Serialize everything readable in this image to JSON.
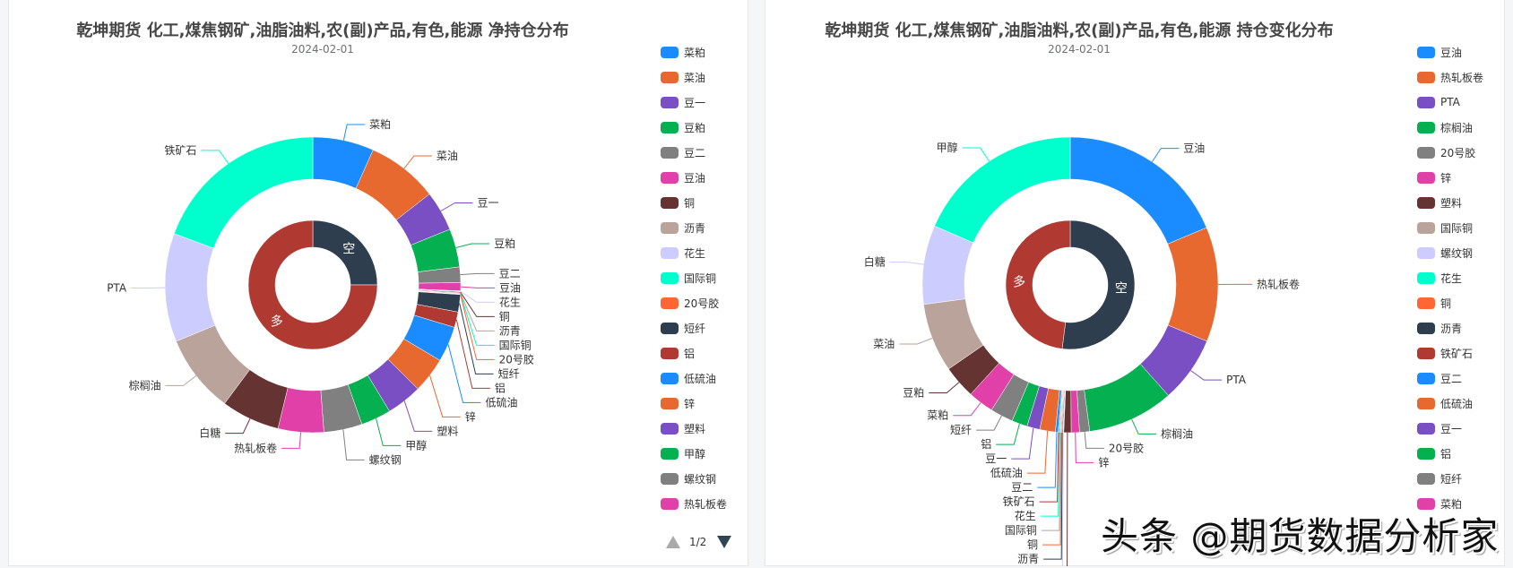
{
  "left": {
    "title": "乾坤期货 化工,煤焦钢矿,油脂油料,农(副)产品,有色,能源 净持仓分布",
    "subtitle": "2024-02-01",
    "legend": [
      {
        "name": "菜粕",
        "color": "#1a8cff"
      },
      {
        "name": "菜油",
        "color": "#e8692f"
      },
      {
        "name": "豆一",
        "color": "#7b4fc4"
      },
      {
        "name": "豆粕",
        "color": "#04b050"
      },
      {
        "name": "豆二",
        "color": "#808080"
      },
      {
        "name": "豆油",
        "color": "#e040a8"
      },
      {
        "name": "铜",
        "color": "#663333"
      },
      {
        "name": "沥青",
        "color": "#baa39b"
      },
      {
        "name": "花生",
        "color": "#ccccff"
      },
      {
        "name": "国际铜",
        "color": "#00ffcc"
      },
      {
        "name": "20号胶",
        "color": "#ff6633"
      },
      {
        "name": "短纤",
        "color": "#2f3e4e"
      },
      {
        "name": "铝",
        "color": "#b03a32"
      },
      {
        "name": "低硫油",
        "color": "#1a8cff"
      },
      {
        "name": "锌",
        "color": "#e8692f"
      },
      {
        "name": "塑料",
        "color": "#7b4fc4"
      },
      {
        "name": "甲醇",
        "color": "#04b050"
      },
      {
        "name": "螺纹钢",
        "color": "#808080"
      },
      {
        "name": "热轧板卷",
        "color": "#e040a8"
      },
      {
        "name": "白糖",
        "color": "#663333"
      }
    ],
    "pager": "1/2"
  },
  "right": {
    "title": "乾坤期货 化工,煤焦钢矿,油脂油料,农(副)产品,有色,能源 持仓变化分布",
    "subtitle": "2024-02-01",
    "legend": [
      {
        "name": "豆油",
        "color": "#1a8cff"
      },
      {
        "name": "热轧板卷",
        "color": "#e8692f"
      },
      {
        "name": "PTA",
        "color": "#7b4fc4"
      },
      {
        "name": "棕榈油",
        "color": "#04b050"
      },
      {
        "name": "20号胶",
        "color": "#808080"
      },
      {
        "name": "锌",
        "color": "#e040a8"
      },
      {
        "name": "塑料",
        "color": "#663333"
      },
      {
        "name": "国际铜",
        "color": "#baa39b"
      },
      {
        "name": "螺纹钢",
        "color": "#ccccff"
      },
      {
        "name": "花生",
        "color": "#00ffcc"
      },
      {
        "name": "铜",
        "color": "#ff6633"
      },
      {
        "name": "沥青",
        "color": "#2f3e4e"
      },
      {
        "name": "铁矿石",
        "color": "#b03a32"
      },
      {
        "name": "豆二",
        "color": "#1a8cff"
      },
      {
        "name": "低硫油",
        "color": "#e8692f"
      },
      {
        "name": "豆一",
        "color": "#7b4fc4"
      },
      {
        "name": "铝",
        "color": "#04b050"
      },
      {
        "name": "短纤",
        "color": "#808080"
      },
      {
        "name": "菜粕",
        "color": "#e040a8"
      }
    ]
  },
  "watermark": "头条 @期货数据分析家",
  "chart_data": [
    {
      "type": "pie",
      "title": "乾坤期货 化工,煤焦钢矿,油脂油料,农(副)产品,有色,能源 净持仓分布",
      "subtitle": "2024-02-01",
      "legend_position": "right",
      "center": [
        348,
        318
      ],
      "inner_ring": {
        "r0": 42,
        "r1": 72,
        "slices": [
          {
            "name": "空",
            "value": 25,
            "color": "#2f3e4e"
          },
          {
            "name": "多",
            "value": 75,
            "color": "#b03a32"
          }
        ]
      },
      "outer_ring": {
        "r0": 118,
        "r1": 165,
        "slices": [
          {
            "name": "菜粕",
            "value": 6.7,
            "color": "#1a8cff"
          },
          {
            "name": "菜油",
            "value": 7.8,
            "color": "#e8692f"
          },
          {
            "name": "豆一",
            "value": 4.4,
            "color": "#7b4fc4"
          },
          {
            "name": "豆粕",
            "value": 4.2,
            "color": "#04b050"
          },
          {
            "name": "豆二",
            "value": 1.7,
            "color": "#808080"
          },
          {
            "name": "豆油",
            "value": 0.9,
            "color": "#e040a8"
          },
          {
            "name": "花生",
            "value": 0.1,
            "color": "#ccccff"
          },
          {
            "name": "铜",
            "value": 0.1,
            "color": "#663333"
          },
          {
            "name": "沥青",
            "value": 0.1,
            "color": "#baa39b"
          },
          {
            "name": "国际铜",
            "value": 0.05,
            "color": "#00ffcc"
          },
          {
            "name": "20号胶",
            "value": 0.05,
            "color": "#ff6633"
          },
          {
            "name": "短纤",
            "value": 1.9,
            "color": "#2f3e4e"
          },
          {
            "name": "铝",
            "value": 1.7,
            "color": "#b03a32"
          },
          {
            "name": "低硫油",
            "value": 3.9,
            "color": "#1a8cff"
          },
          {
            "name": "锌",
            "value": 3.9,
            "color": "#e8692f"
          },
          {
            "name": "塑料",
            "value": 3.9,
            "color": "#7b4fc4"
          },
          {
            "name": "甲醇",
            "value": 3.3,
            "color": "#04b050"
          },
          {
            "name": "螺纹钢",
            "value": 4.2,
            "color": "#808080"
          },
          {
            "name": "热轧板卷",
            "value": 5.0,
            "color": "#e040a8"
          },
          {
            "name": "白糖",
            "value": 6.4,
            "color": "#663333"
          },
          {
            "name": "棕榈油",
            "value": 8.6,
            "color": "#baa39b"
          },
          {
            "name": "PTA",
            "value": 11.9,
            "color": "#ccccff"
          },
          {
            "name": "铁矿石",
            "value": 19.4,
            "color": "#00ffcc"
          }
        ]
      }
    },
    {
      "type": "pie",
      "title": "乾坤期货 化工,煤焦钢矿,油脂油料,农(副)产品,有色,能源 持仓变化分布",
      "subtitle": "2024-02-01",
      "legend_position": "right",
      "center": [
        1193,
        318
      ],
      "inner_ring": {
        "r0": 42,
        "r1": 72,
        "slices": [
          {
            "name": "空",
            "value": 52,
            "color": "#2f3e4e"
          },
          {
            "name": "多",
            "value": 48,
            "color": "#b03a32"
          }
        ]
      },
      "outer_ring": {
        "r0": 118,
        "r1": 165,
        "slices": [
          {
            "name": "豆油",
            "value": 18.6,
            "color": "#1a8cff"
          },
          {
            "name": "热轧板卷",
            "value": 12.5,
            "color": "#e8692f"
          },
          {
            "name": "PTA",
            "value": 7.2,
            "color": "#7b4fc4"
          },
          {
            "name": "棕榈油",
            "value": 9.4,
            "color": "#04b050"
          },
          {
            "name": "20号胶",
            "value": 1.1,
            "color": "#808080"
          },
          {
            "name": "锌",
            "value": 0.9,
            "color": "#e040a8"
          },
          {
            "name": "塑料",
            "value": 0.8,
            "color": "#663333"
          },
          {
            "name": "螺纹钢",
            "value": 0.1,
            "color": "#ccccff"
          },
          {
            "name": "沥青",
            "value": 0.1,
            "color": "#2f3e4e"
          },
          {
            "name": "铜",
            "value": 0.1,
            "color": "#ff6633"
          },
          {
            "name": "国际铜",
            "value": 0.1,
            "color": "#baa39b"
          },
          {
            "name": "花生",
            "value": 0.1,
            "color": "#00ffcc"
          },
          {
            "name": "铁矿石",
            "value": 0.1,
            "color": "#b03a32"
          },
          {
            "name": "豆二",
            "value": 0.3,
            "color": "#1a8cff"
          },
          {
            "name": "低硫油",
            "value": 1.7,
            "color": "#e8692f"
          },
          {
            "name": "豆一",
            "value": 1.4,
            "color": "#7b4fc4"
          },
          {
            "name": "铝",
            "value": 1.7,
            "color": "#04b050"
          },
          {
            "name": "短纤",
            "value": 2.5,
            "color": "#808080"
          },
          {
            "name": "菜粕",
            "value": 2.8,
            "color": "#e040a8"
          },
          {
            "name": "豆粕",
            "value": 3.6,
            "color": "#663333"
          },
          {
            "name": "菜油",
            "value": 7.5,
            "color": "#baa39b"
          },
          {
            "name": "白糖",
            "value": 8.6,
            "color": "#ccccff"
          },
          {
            "name": "甲醇",
            "value": 18.4,
            "color": "#00ffcc"
          }
        ]
      }
    }
  ]
}
